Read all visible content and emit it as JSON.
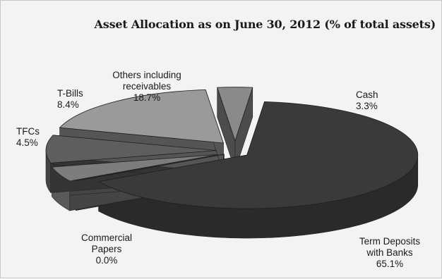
{
  "chart_data": {
    "type": "pie",
    "title": "Asset Allocation as on June 30, 2012 (% of total assets)",
    "slices": [
      {
        "name_lines": [
          "Cash"
        ],
        "value_label": "3.3%",
        "value": 3.3,
        "color": "#8a8a8a"
      },
      {
        "name_lines": [
          "Term Deposits",
          "with Banks"
        ],
        "value_label": "65.1%",
        "value": 65.1,
        "color": "#3a3a3a"
      },
      {
        "name_lines": [
          "Commercial",
          "Papers"
        ],
        "value_label": "0.0%",
        "value": 0.0,
        "color": "#5a5a5a"
      },
      {
        "name_lines": [
          "TFCs"
        ],
        "value_label": "4.5%",
        "value": 4.5,
        "color": "#7d7d7d"
      },
      {
        "name_lines": [
          "T-Bills"
        ],
        "value_label": "8.4%",
        "value": 8.4,
        "color": "#5e5e5e"
      },
      {
        "name_lines": [
          "Others including",
          "receivables"
        ],
        "value_label": "18.7%",
        "value": 18.7,
        "color": "#9a9a9a"
      }
    ]
  }
}
